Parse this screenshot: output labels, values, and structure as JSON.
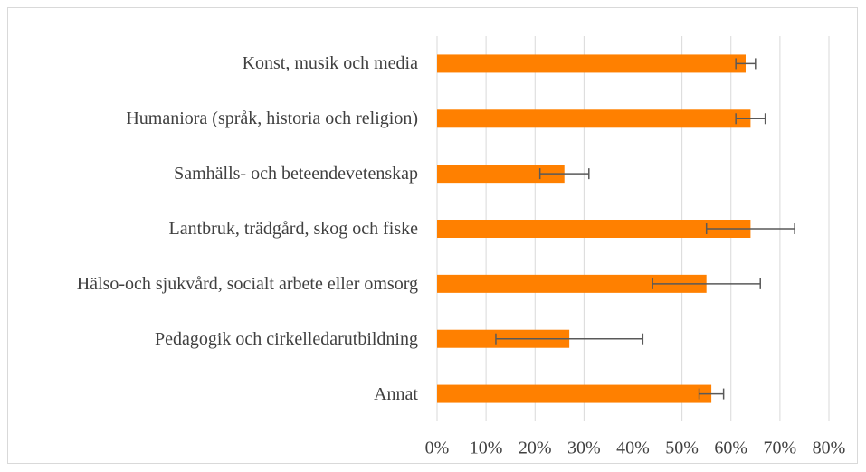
{
  "chart_data": {
    "type": "bar",
    "orientation": "horizontal",
    "categories": [
      "Konst, musik och media",
      "Humaniora (språk, historia och religion)",
      "Samhälls- och beteendevetenskap",
      "Lantbruk, trädgård, skog och fiske",
      "Hälso-och sjukvård, socialt arbete eller omsorg",
      "Pedagogik och cirkelledarutbildning",
      "Annat"
    ],
    "values": [
      63,
      64,
      26,
      64,
      55,
      27,
      56
    ],
    "errors": [
      2,
      3,
      5,
      9,
      11,
      15,
      2.5
    ],
    "color": "#ff8000",
    "xlim": [
      0,
      80
    ],
    "xticks": [
      {
        "value": 0,
        "label": "0%"
      },
      {
        "value": 10,
        "label": "10%"
      },
      {
        "value": 20,
        "label": "20%"
      },
      {
        "value": 30,
        "label": "30%"
      },
      {
        "value": 40,
        "label": "40%"
      },
      {
        "value": 50,
        "label": "50%"
      },
      {
        "value": 60,
        "label": "60%"
      },
      {
        "value": 70,
        "label": "70%"
      },
      {
        "value": 80,
        "label": "80%"
      }
    ],
    "grid": true
  }
}
